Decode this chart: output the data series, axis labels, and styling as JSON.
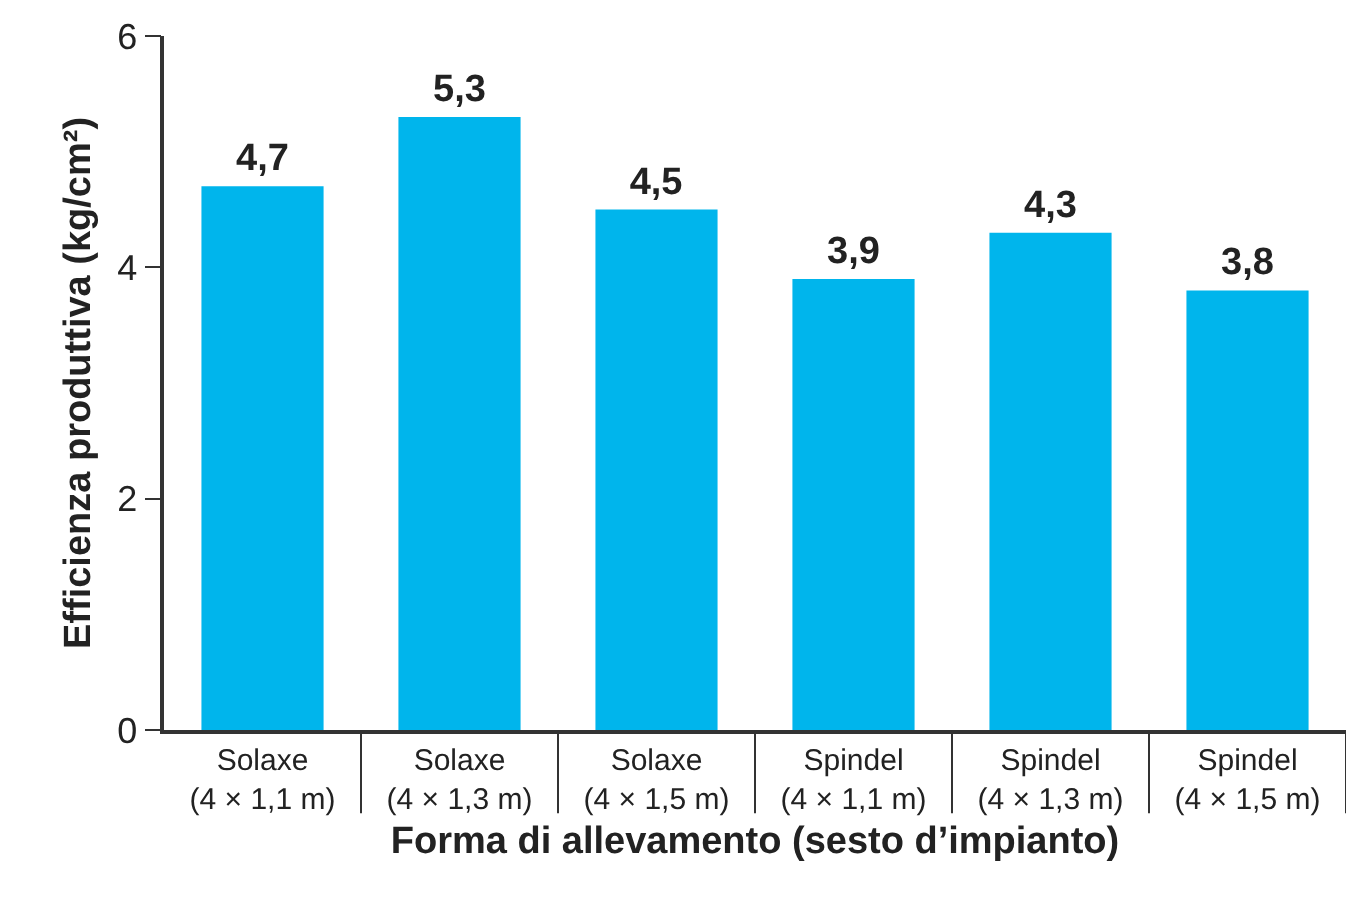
{
  "chart_data": {
    "type": "bar",
    "xlabel": "Forma di allevamento (sesto d’impianto)",
    "ylabel": "Efficienza produttiva (kg/cm²)",
    "categories": [
      "Solaxe\n(4 × 1,1 m)",
      "Solaxe\n(4 × 1,3 m)",
      "Solaxe\n(4 × 1,5 m)",
      "Spindel\n(4 × 1,1 m)",
      "Spindel\n(4 × 1,3 m)",
      "Spindel\n(4 × 1,5 m)"
    ],
    "values": [
      4.7,
      5.3,
      4.5,
      3.9,
      4.3,
      3.8
    ],
    "value_labels": [
      "4,7",
      "5,3",
      "4,5",
      "3,9",
      "4,3",
      "3,8"
    ],
    "color": "#00b5ec",
    "ylim": [
      0,
      6
    ],
    "yticks": [
      0,
      2,
      4,
      6
    ],
    "grid": false,
    "legend": false
  }
}
